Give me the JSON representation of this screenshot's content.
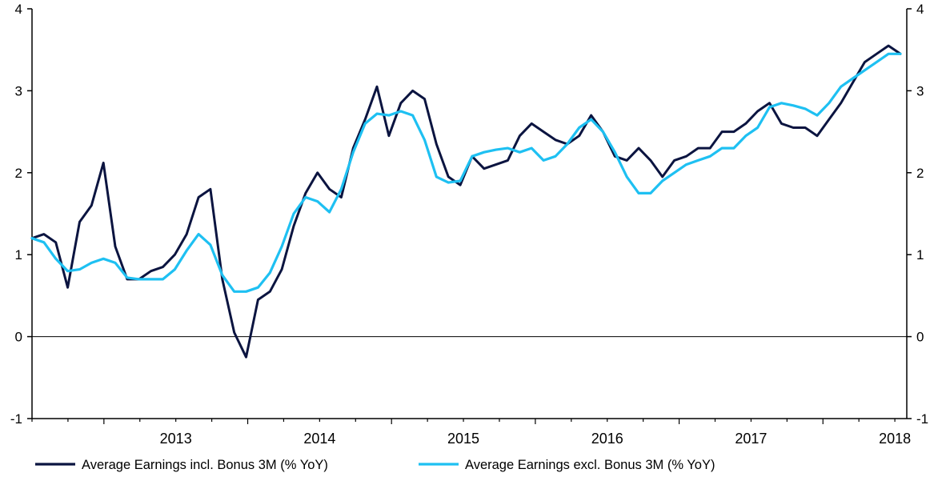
{
  "chart_data": {
    "type": "line",
    "title": "",
    "xlabel": "",
    "ylabel": "",
    "ylim": [
      -1,
      4
    ],
    "yticks": [
      "-1",
      "0",
      "1",
      "2",
      "3",
      "4"
    ],
    "x_start_year": 2012.5,
    "x_end_year": 2018.583,
    "year_labels": [
      "2013",
      "2014",
      "2015",
      "2016",
      "2017",
      "2018"
    ],
    "grid": false,
    "zero_line": true,
    "legend_position": "bottom",
    "series": [
      {
        "name": "Average Earnings incl. Bonus 3M (% YoY)",
        "color": "#0b1440",
        "values": [
          1.2,
          1.25,
          1.15,
          0.6,
          1.4,
          1.6,
          2.12,
          1.1,
          0.7,
          0.7,
          0.8,
          0.85,
          1.0,
          1.25,
          1.7,
          1.8,
          0.7,
          0.05,
          -0.25,
          0.45,
          0.55,
          0.82,
          1.35,
          1.75,
          2.0,
          1.8,
          1.7,
          2.3,
          2.65,
          3.05,
          2.45,
          2.85,
          3.0,
          2.9,
          2.35,
          1.95,
          1.85,
          2.2,
          2.05,
          2.1,
          2.15,
          2.45,
          2.6,
          2.5,
          2.4,
          2.35,
          2.45,
          2.7,
          2.5,
          2.2,
          2.15,
          2.3,
          2.15,
          1.95,
          2.15,
          2.2,
          2.3,
          2.3,
          2.5,
          2.5,
          2.6,
          2.75,
          2.85,
          2.6,
          2.55,
          2.55,
          2.45,
          2.65,
          2.85,
          3.1,
          3.35,
          3.45,
          3.55,
          3.45
        ]
      },
      {
        "name": "Average Earnings excl. Bonus 3M (% YoY)",
        "color": "#1ec0f2",
        "values": [
          1.2,
          1.15,
          0.95,
          0.8,
          0.82,
          0.9,
          0.95,
          0.9,
          0.72,
          0.7,
          0.7,
          0.7,
          0.82,
          1.05,
          1.25,
          1.12,
          0.75,
          0.55,
          0.55,
          0.6,
          0.78,
          1.1,
          1.5,
          1.7,
          1.65,
          1.52,
          1.8,
          2.25,
          2.6,
          2.72,
          2.7,
          2.75,
          2.7,
          2.4,
          1.95,
          1.88,
          1.9,
          2.2,
          2.25,
          2.28,
          2.3,
          2.25,
          2.3,
          2.15,
          2.2,
          2.35,
          2.55,
          2.65,
          2.5,
          2.25,
          1.95,
          1.75,
          1.75,
          1.9,
          2.0,
          2.1,
          2.15,
          2.2,
          2.3,
          2.3,
          2.45,
          2.55,
          2.8,
          2.85,
          2.82,
          2.78,
          2.7,
          2.85,
          3.05,
          3.15,
          3.25,
          3.35,
          3.45,
          3.45
        ]
      }
    ]
  }
}
